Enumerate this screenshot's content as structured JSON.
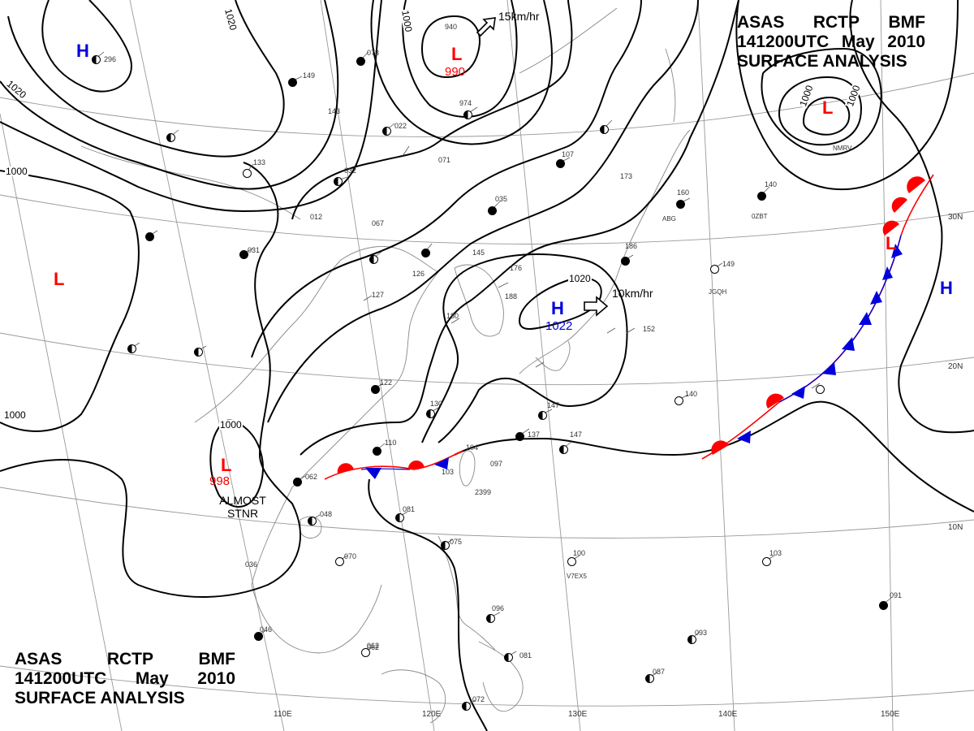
{
  "title": {
    "line1": [
      "ASAS",
      "RCTP",
      "BMF"
    ],
    "line2": [
      "141200UTC",
      "May",
      "2010"
    ],
    "line3": "SURFACE ANALYSIS"
  },
  "pressure_systems": [
    {
      "type": "L",
      "value": "990"
    },
    {
      "type": "L",
      "value": "998"
    },
    {
      "type": "L",
      "value": ""
    },
    {
      "type": "L",
      "value": ""
    },
    {
      "type": "L",
      "value": ""
    },
    {
      "type": "H",
      "value": "1022"
    },
    {
      "type": "H",
      "value": ""
    },
    {
      "type": "H",
      "value": ""
    }
  ],
  "isobar_labels": [
    "1020",
    "1020",
    "1000",
    "1000",
    "1000",
    "1020",
    "1000",
    "1000",
    "1000"
  ],
  "motion_vectors": [
    "15km/hr",
    "10km/hr"
  ],
  "notes": {
    "stationary_line1": "ALMOST",
    "stationary_line2": "STNR"
  },
  "longitude_labels": [
    "110E",
    "120E",
    "130E",
    "140E",
    "150E"
  ],
  "latitude_labels": [
    "30N",
    "20N",
    "10N"
  ],
  "station_values": [
    "940",
    "974",
    "296",
    "149",
    "073",
    "022",
    "143",
    "133",
    "032",
    "012",
    "067",
    "071",
    "035",
    "107",
    "173",
    "160",
    "140",
    "145",
    "126",
    "127",
    "176",
    "188",
    "180",
    "186",
    "149",
    "152",
    "122",
    "130",
    "147",
    "137",
    "147",
    "110",
    "104",
    "097",
    "103",
    "062",
    "048",
    "081",
    "070",
    "075",
    "096",
    "062",
    "081",
    "100",
    "036",
    "046",
    "062",
    "072",
    "087",
    "093",
    "091",
    "103",
    "140",
    "031",
    "2399"
  ],
  "station_ids": [
    "ABG",
    "JGQH",
    "0ZBT",
    "V7EX5",
    "NMRV"
  ],
  "colors": {
    "isobar": "#000000",
    "low": "#ff0000",
    "high": "#0000dd",
    "warm_front": "#ff0000",
    "cold_front": "#0000dd",
    "coast": "#888888",
    "grid": "#999999"
  }
}
